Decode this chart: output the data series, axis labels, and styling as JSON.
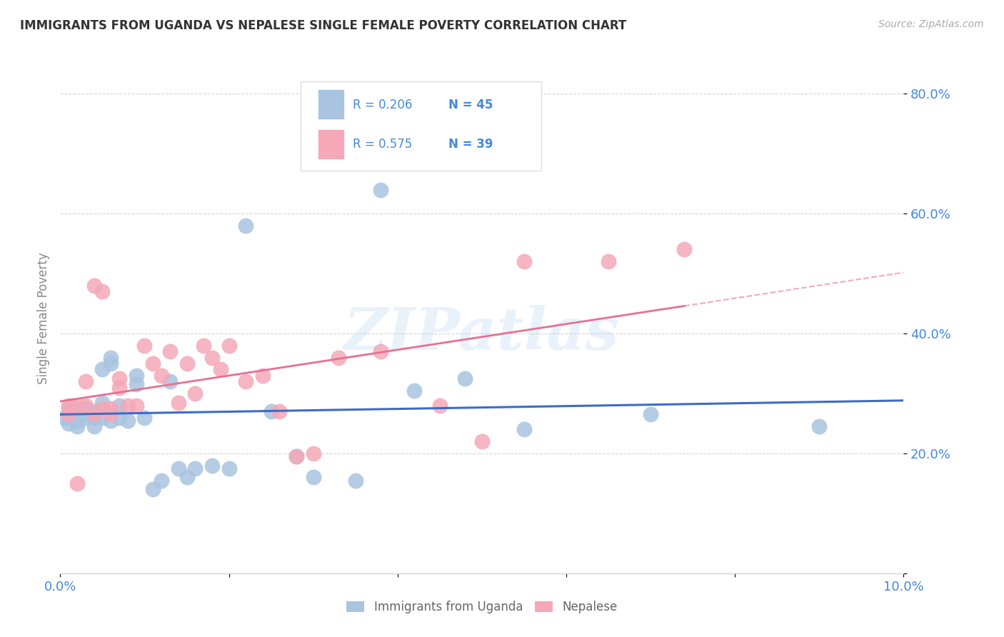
{
  "title": "IMMIGRANTS FROM UGANDA VS NEPALESE SINGLE FEMALE POVERTY CORRELATION CHART",
  "source": "Source: ZipAtlas.com",
  "ylabel": "Single Female Poverty",
  "watermark": "ZIPatlas",
  "blue_color": "#A8C4E0",
  "pink_color": "#F4A8B8",
  "blue_line_color": "#3B6CC7",
  "pink_line_color": "#E87090",
  "axis_label_color": "#4488DD",
  "grid_color": "#CCCCCC",
  "uganda_x": [
    0.0005,
    0.001,
    0.001,
    0.0015,
    0.002,
    0.002,
    0.002,
    0.003,
    0.003,
    0.003,
    0.003,
    0.004,
    0.004,
    0.004,
    0.005,
    0.005,
    0.005,
    0.006,
    0.006,
    0.006,
    0.007,
    0.007,
    0.008,
    0.009,
    0.009,
    0.01,
    0.011,
    0.012,
    0.013,
    0.014,
    0.015,
    0.016,
    0.018,
    0.02,
    0.022,
    0.025,
    0.028,
    0.03,
    0.035,
    0.038,
    0.042,
    0.048,
    0.055,
    0.07,
    0.09
  ],
  "uganda_y": [
    0.26,
    0.275,
    0.25,
    0.28,
    0.255,
    0.27,
    0.245,
    0.265,
    0.27,
    0.26,
    0.275,
    0.26,
    0.245,
    0.27,
    0.26,
    0.285,
    0.34,
    0.35,
    0.36,
    0.255,
    0.28,
    0.26,
    0.255,
    0.33,
    0.315,
    0.26,
    0.14,
    0.155,
    0.32,
    0.175,
    0.16,
    0.175,
    0.18,
    0.175,
    0.58,
    0.27,
    0.195,
    0.16,
    0.155,
    0.64,
    0.305,
    0.325,
    0.24,
    0.265,
    0.245
  ],
  "nepal_x": [
    0.001,
    0.001,
    0.002,
    0.002,
    0.003,
    0.003,
    0.004,
    0.004,
    0.005,
    0.005,
    0.006,
    0.006,
    0.007,
    0.007,
    0.008,
    0.009,
    0.01,
    0.011,
    0.012,
    0.013,
    0.014,
    0.015,
    0.016,
    0.017,
    0.018,
    0.019,
    0.02,
    0.022,
    0.024,
    0.026,
    0.028,
    0.03,
    0.033,
    0.038,
    0.045,
    0.05,
    0.055,
    0.065,
    0.074
  ],
  "nepal_y": [
    0.265,
    0.28,
    0.15,
    0.28,
    0.32,
    0.28,
    0.265,
    0.48,
    0.47,
    0.275,
    0.275,
    0.265,
    0.325,
    0.31,
    0.28,
    0.28,
    0.38,
    0.35,
    0.33,
    0.37,
    0.285,
    0.35,
    0.3,
    0.38,
    0.36,
    0.34,
    0.38,
    0.32,
    0.33,
    0.27,
    0.195,
    0.2,
    0.36,
    0.37,
    0.28,
    0.22,
    0.52,
    0.52,
    0.54
  ],
  "xlim": [
    0.0,
    0.1
  ],
  "ylim": [
    0.0,
    0.85
  ],
  "yticks": [
    0.0,
    0.2,
    0.4,
    0.6,
    0.8
  ],
  "ytick_labels": [
    "",
    "20.0%",
    "40.0%",
    "60.0%",
    "80.0%"
  ],
  "xticks": [
    0.0,
    0.02,
    0.04,
    0.06,
    0.08,
    0.1
  ],
  "xtick_labels": [
    "0.0%",
    "",
    "",
    "",
    "",
    "10.0%"
  ],
  "legend_r1": "R = 0.206",
  "legend_n1": "N = 45",
  "legend_r2": "R = 0.575",
  "legend_n2": "N = 39",
  "bottom_legend1": "Immigrants from Uganda",
  "bottom_legend2": "Nepalese"
}
